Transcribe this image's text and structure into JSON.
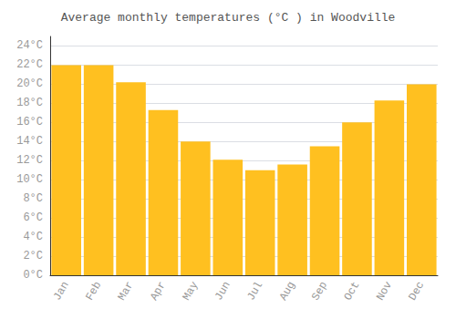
{
  "chart_data": {
    "type": "bar",
    "title": "Average monthly temperatures (°C ) in Woodville",
    "categories": [
      "Jan",
      "Feb",
      "Mar",
      "Apr",
      "May",
      "Jun",
      "Jul",
      "Aug",
      "Sep",
      "Oct",
      "Nov",
      "Dec"
    ],
    "values": [
      22,
      22,
      20.2,
      17.3,
      14.0,
      12.1,
      11.0,
      11.6,
      13.5,
      16.0,
      18.3,
      20.0
    ],
    "color": "#FFC020",
    "ylim": [
      0,
      25
    ],
    "yticks": [
      {
        "value": 0,
        "label": "0°C"
      },
      {
        "value": 2,
        "label": "2°C"
      },
      {
        "value": 4,
        "label": "4°C"
      },
      {
        "value": 6,
        "label": "6°C"
      },
      {
        "value": 8,
        "label": "8°C"
      },
      {
        "value": 10,
        "label": "10°C"
      },
      {
        "value": 12,
        "label": "12°C"
      },
      {
        "value": 14,
        "label": "14°C"
      },
      {
        "value": 16,
        "label": "16°C"
      },
      {
        "value": 18,
        "label": "18°C"
      },
      {
        "value": 20,
        "label": "20°C"
      },
      {
        "value": 22,
        "label": "22°C"
      },
      {
        "value": 24,
        "label": "24°C"
      }
    ],
    "grid": true
  }
}
